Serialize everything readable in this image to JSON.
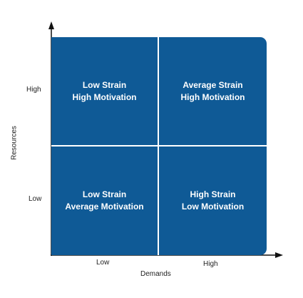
{
  "axes": {
    "y_title": "Resources",
    "x_title": "Demands",
    "y_ticks": {
      "high": "High",
      "low": "Low"
    },
    "x_ticks": {
      "low": "Low",
      "high": "High"
    }
  },
  "quadrants": {
    "top_left": {
      "line1": "Low Strain",
      "line2": "High Motivation"
    },
    "top_right": {
      "line1": "Average Strain",
      "line2": "High Motivation"
    },
    "bottom_left": {
      "line1": "Low Strain",
      "line2": "Average Motivation"
    },
    "bottom_right": {
      "line1": "High Strain",
      "line2": "Low Motivation"
    }
  },
  "colors": {
    "quadrant_fill": "#0f5a96",
    "divider": "#ffffff",
    "axis": "#111111"
  }
}
